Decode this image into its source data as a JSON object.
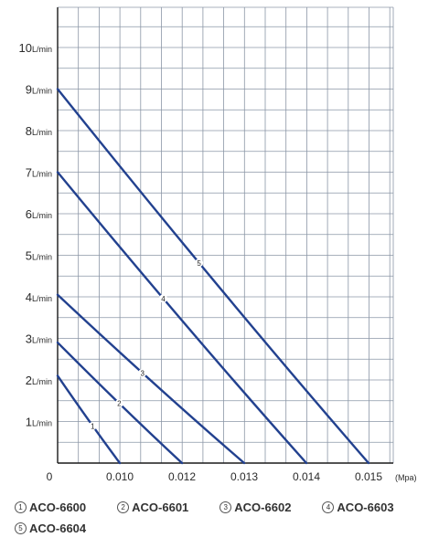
{
  "chart_data": {
    "type": "line",
    "x_ticks": [
      "0",
      "0.010",
      "0.012",
      "0.013",
      "0.014",
      "0.015"
    ],
    "x_unit": "(Mpa)",
    "y_ticks": [
      {
        "value": 1,
        "label": "1",
        "unit": "L/min"
      },
      {
        "value": 2,
        "label": "2",
        "unit": "L/min"
      },
      {
        "value": 3,
        "label": "3",
        "unit": "L/min"
      },
      {
        "value": 4,
        "label": "4",
        "unit": "L/min"
      },
      {
        "value": 5,
        "label": "5",
        "unit": "L/min"
      },
      {
        "value": 6,
        "label": "6",
        "unit": "L/min"
      },
      {
        "value": 7,
        "label": "7",
        "unit": "L/min"
      },
      {
        "value": 8,
        "label": "8",
        "unit": "L/min"
      },
      {
        "value": 9,
        "label": "9",
        "unit": "L/min"
      },
      {
        "value": 10,
        "label": "10",
        "unit": "L/min"
      }
    ],
    "ylim": [
      0,
      11
    ],
    "grid": true,
    "line_color": "#22418f",
    "series": [
      {
        "label": "1",
        "name": "ACO-6600",
        "points": [
          [
            0,
            2.1
          ],
          [
            0.01,
            0
          ]
        ],
        "label_at": 0.55
      },
      {
        "label": "2",
        "name": "ACO-6601",
        "points": [
          [
            0,
            2.9
          ],
          [
            0.012,
            0
          ]
        ],
        "label_at": 0.48
      },
      {
        "label": "3",
        "name": "ACO-6602",
        "points": [
          [
            0,
            4.05
          ],
          [
            0.013,
            0
          ]
        ],
        "label_at": 0.44
      },
      {
        "label": "4",
        "name": "ACO-6603",
        "points": [
          [
            0,
            7.0
          ],
          [
            0.014,
            0
          ]
        ],
        "label_at": 0.41
      },
      {
        "label": "5",
        "name": "ACO-6604",
        "points": [
          [
            0,
            9.0
          ],
          [
            0.015,
            0
          ]
        ],
        "label_at": 0.44
      }
    ]
  },
  "legend": [
    {
      "num": "1",
      "name": "ACO-6600"
    },
    {
      "num": "2",
      "name": "ACO-6601"
    },
    {
      "num": "3",
      "name": "ACO-6602"
    },
    {
      "num": "4",
      "name": "ACO-6603"
    },
    {
      "num": "5",
      "name": "ACO-6604"
    }
  ]
}
